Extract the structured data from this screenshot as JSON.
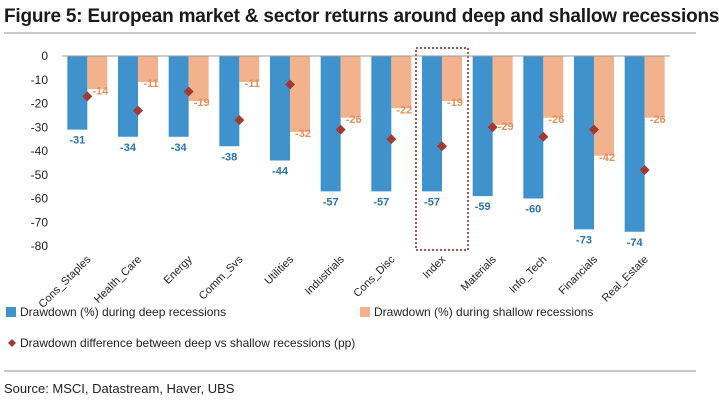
{
  "title": "Figure 5: European market & sector returns around deep and shallow recessions",
  "source": "Source:  MSCI, Datastream, Haver, UBS",
  "colors": {
    "deep": "#3f92cb",
    "shallow": "#f2b28e",
    "diff": "#a13a32",
    "highlight": "#8b1a1a"
  },
  "chart_data": {
    "type": "bar",
    "categories": [
      "Cons_Staples",
      "Health_Care",
      "Energy",
      "Comm_Svs",
      "Utilities",
      "Industrials",
      "Cons_Disc",
      "Index",
      "Materials",
      "Info_Tech",
      "Financials",
      "Real_Estate"
    ],
    "highlighted_category": "Index",
    "ylim": [
      -80,
      0
    ],
    "yticks": [
      0,
      -10,
      -20,
      -30,
      -40,
      -50,
      -60,
      -70,
      -80
    ],
    "grid": false,
    "legend_position": "bottom",
    "series": [
      {
        "name": "Drawdown (%) during deep recessions",
        "type": "bar",
        "values": [
          -31,
          -34,
          -34,
          -38,
          -44,
          -57,
          -57,
          -57,
          -59,
          -60,
          -73,
          -74
        ]
      },
      {
        "name": "Drawdown (%) during shallow recessions",
        "type": "bar",
        "values": [
          -14,
          -11,
          -19,
          -11,
          -32,
          -26,
          -22,
          -19,
          -29,
          -26,
          -42,
          -26
        ]
      },
      {
        "name": "Drawdown difference between deep vs shallow recessions (pp)",
        "type": "scatter",
        "values": [
          -17,
          -23,
          -15,
          -27,
          -12,
          -31,
          -35,
          -38,
          -30,
          -34,
          -31,
          -48
        ]
      }
    ]
  }
}
